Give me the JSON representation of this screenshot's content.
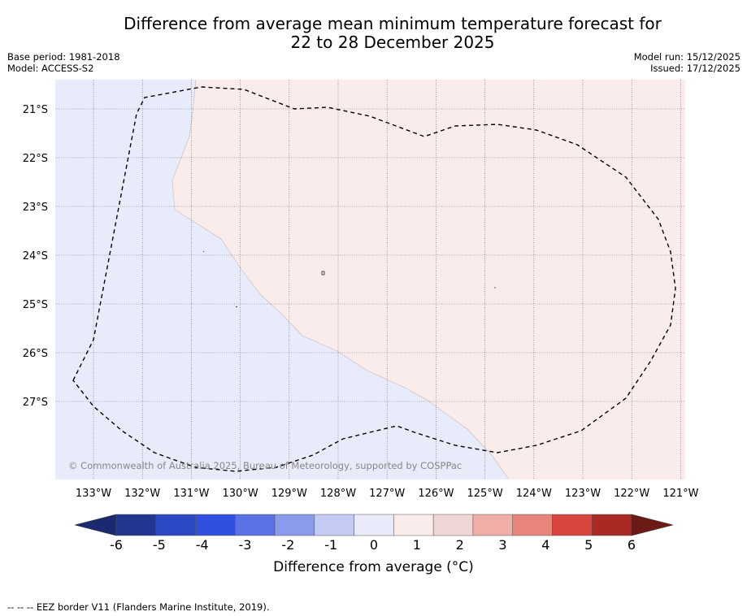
{
  "title": {
    "line1": "Difference from average mean minimum temperature forecast for",
    "line2": "22 to 28 December 2025"
  },
  "meta": {
    "base_period": "Base period: 1981-2018",
    "model": "Model: ACCESS-S2",
    "model_run": "Model run: 15/12/2025",
    "issued": "Issued: 17/12/2025"
  },
  "map": {
    "lat_labels": [
      "21°S",
      "22°S",
      "23°S",
      "24°S",
      "25°S",
      "26°S",
      "27°S"
    ],
    "lon_labels": [
      "133°W",
      "132°W",
      "131°W",
      "130°W",
      "129°W",
      "128°W",
      "127°W",
      "126°W",
      "125°W",
      "124°W",
      "123°W",
      "122°W",
      "121°W"
    ],
    "copyright": "© Commonwealth of Australia 2025, Bureau of Meteorology, supported by COSPPac",
    "colors": {
      "cool_fill": "#e8ebfa",
      "warm_fill": "#fbecec",
      "grid": "#666666"
    }
  },
  "colorbar": {
    "ticks": [
      "-6",
      "-5",
      "-4",
      "-3",
      "-2",
      "-1",
      "0",
      "1",
      "2",
      "3",
      "4",
      "5",
      "6"
    ],
    "colors": [
      "#22368f",
      "#2b49c4",
      "#3250e0",
      "#5a72e3",
      "#8a9bec",
      "#c3caf4",
      "#e9ebfb",
      "#fbecec",
      "#eed6d4",
      "#efaea7",
      "#e7857c",
      "#d8443e",
      "#a82a22"
    ],
    "under_color": "#1b2a70",
    "over_color": "#6b1a16",
    "label": "Difference from average ($^\\circ$C)",
    "label_display": "Difference from average (°C)"
  },
  "footer": {
    "legend": "--  --  -- EEZ border V11 (Flanders Marine Institute, 2019)."
  }
}
